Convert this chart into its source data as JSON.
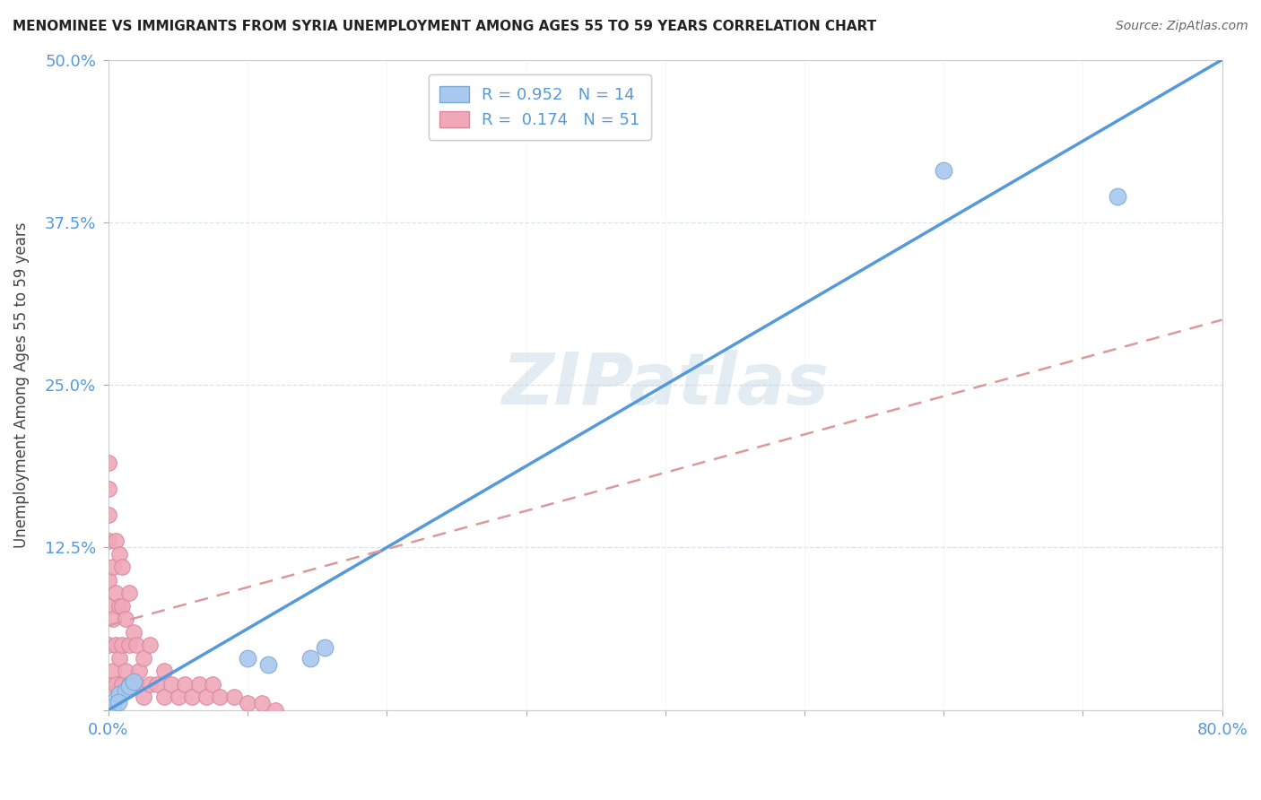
{
  "title": "MENOMINEE VS IMMIGRANTS FROM SYRIA UNEMPLOYMENT AMONG AGES 55 TO 59 YEARS CORRELATION CHART",
  "source": "Source: ZipAtlas.com",
  "ylabel": "Unemployment Among Ages 55 to 59 years",
  "xlim": [
    0.0,
    0.8
  ],
  "ylim": [
    0.0,
    0.5
  ],
  "ytick_vals": [
    0.0,
    0.125,
    0.25,
    0.375,
    0.5
  ],
  "ytick_labels": [
    "",
    "12.5%",
    "25.0%",
    "37.5%",
    "50.0%"
  ],
  "xtick_vals": [
    0.0,
    0.1,
    0.2,
    0.3,
    0.4,
    0.5,
    0.6,
    0.7,
    0.8
  ],
  "xtick_labels": [
    "0.0%",
    "",
    "",
    "",
    "",
    "",
    "",
    "",
    "80.0%"
  ],
  "watermark": "ZIPatlas",
  "menominee_R": 0.952,
  "menominee_N": 14,
  "syria_R": 0.174,
  "syria_N": 51,
  "menominee_color": "#a8c8f0",
  "menominee_edge_color": "#7aaad0",
  "syria_color": "#f0a8b8",
  "syria_edge_color": "#d888a0",
  "menominee_line_color": "#5599dd",
  "syria_line_color": "#dd9999",
  "tick_color": "#5599dd",
  "grid_color": "#ccddee",
  "spine_color": "#cccccc",
  "menominee_scatter_x": [
    0.003,
    0.005,
    0.008,
    0.012,
    0.015,
    0.018,
    0.1,
    0.115,
    0.145,
    0.155,
    0.6,
    0.725,
    0.002,
    0.007
  ],
  "menominee_scatter_y": [
    0.003,
    0.008,
    0.012,
    0.015,
    0.018,
    0.022,
    0.04,
    0.035,
    0.04,
    0.048,
    0.415,
    0.395,
    0.002,
    0.006
  ],
  "syria_scatter_x": [
    0.0,
    0.0,
    0.0,
    0.0,
    0.0,
    0.0,
    0.0,
    0.0,
    0.003,
    0.003,
    0.003,
    0.005,
    0.005,
    0.005,
    0.005,
    0.008,
    0.008,
    0.008,
    0.01,
    0.01,
    0.01,
    0.01,
    0.012,
    0.012,
    0.015,
    0.015,
    0.015,
    0.018,
    0.018,
    0.02,
    0.02,
    0.022,
    0.025,
    0.025,
    0.03,
    0.03,
    0.035,
    0.04,
    0.04,
    0.045,
    0.05,
    0.055,
    0.06,
    0.065,
    0.07,
    0.075,
    0.08,
    0.09,
    0.1,
    0.11,
    0.12
  ],
  "syria_scatter_y": [
    0.02,
    0.05,
    0.08,
    0.1,
    0.13,
    0.15,
    0.17,
    0.19,
    0.03,
    0.07,
    0.11,
    0.02,
    0.05,
    0.09,
    0.13,
    0.04,
    0.08,
    0.12,
    0.02,
    0.05,
    0.08,
    0.11,
    0.03,
    0.07,
    0.02,
    0.05,
    0.09,
    0.02,
    0.06,
    0.02,
    0.05,
    0.03,
    0.01,
    0.04,
    0.02,
    0.05,
    0.02,
    0.01,
    0.03,
    0.02,
    0.01,
    0.02,
    0.01,
    0.02,
    0.01,
    0.02,
    0.01,
    0.01,
    0.005,
    0.005,
    0.0
  ],
  "men_line_x": [
    0.0,
    0.8
  ],
  "men_line_y": [
    0.0,
    0.5
  ],
  "syr_line_x": [
    0.0,
    0.8
  ],
  "syr_line_y": [
    0.065,
    0.3
  ]
}
